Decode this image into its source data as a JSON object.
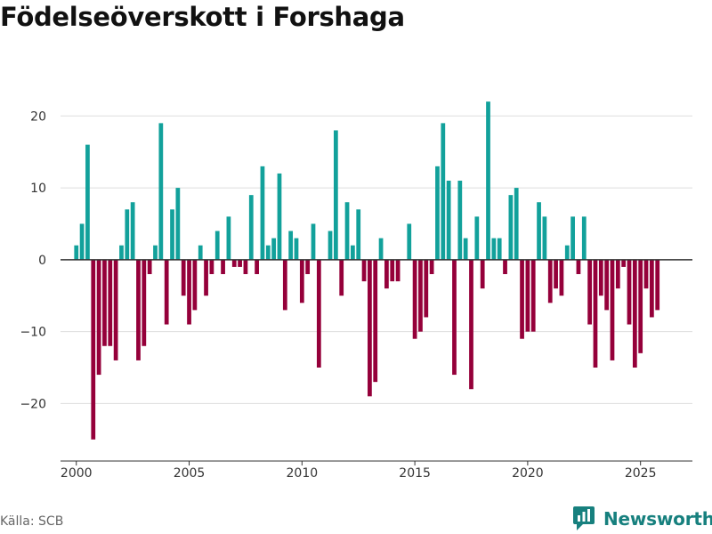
{
  "title": "Födelseöverskott i Forshaga",
  "source": "Källa: SCB",
  "brand": {
    "name": "Newsworthy",
    "icon": "newsworthy-logo-icon"
  },
  "colors": {
    "positive": "#12a19b",
    "negative": "#95003a",
    "grid": "#dddddd",
    "axis": "#333333",
    "brand": "#17807e"
  },
  "chart_data": {
    "type": "bar",
    "title": "Födelseöverskott i Forshaga",
    "xlabel": "",
    "ylabel": "",
    "ylim": [
      -28,
      24
    ],
    "xlim": [
      1999.3,
      2027.3
    ],
    "y_ticks": [
      20,
      10,
      0,
      -10,
      -20
    ],
    "y_tick_labels": [
      "20",
      "10",
      "0",
      "−10",
      "−20"
    ],
    "x_ticks": [
      2000,
      2005,
      2010,
      2015,
      2020,
      2025
    ],
    "x_tick_labels": [
      "2000",
      "2005",
      "2010",
      "2015",
      "2020",
      "2025"
    ],
    "bar_interval": "quarter",
    "x_start": 2000.0,
    "x_step": 0.25,
    "values": [
      2,
      5,
      16,
      -25,
      -16,
      -12,
      -12,
      -14,
      2,
      7,
      8,
      -14,
      -12,
      -2,
      2,
      19,
      -9,
      7,
      10,
      -5,
      -9,
      -7,
      2,
      -5,
      -2,
      4,
      -2,
      6,
      -1,
      -1,
      -2,
      9,
      -2,
      13,
      2,
      3,
      12,
      -7,
      4,
      3,
      -6,
      -2,
      5,
      -15,
      0,
      4,
      18,
      -5,
      8,
      2,
      7,
      -3,
      -19,
      -17,
      3,
      -4,
      -3,
      -3,
      0,
      5,
      -11,
      -10,
      -8,
      -2,
      13,
      19,
      11,
      -16,
      11,
      3,
      -18,
      6,
      -4,
      22,
      3,
      3,
      -2,
      9,
      10,
      -11,
      -10,
      -10,
      8,
      6,
      -6,
      -4,
      -5,
      2,
      6,
      -2,
      6,
      -9,
      -15,
      -5,
      -7,
      -14,
      -4,
      -1,
      -9,
      -15,
      -13,
      -4,
      -8,
      -7
    ]
  }
}
